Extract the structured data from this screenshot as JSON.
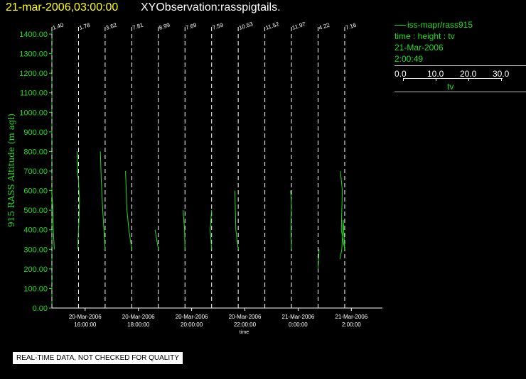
{
  "header": {
    "date": "21-mar-2006,03:00:00",
    "title": "XYObservation:rasspigtails."
  },
  "legend": {
    "series": "iss-mapr/rass915",
    "axes": "time : height : tv",
    "date": "21-Mar-2006",
    "time": "2:00:49",
    "scale_ticks": [
      "0.0",
      "10.0",
      "20.0",
      "30.0"
    ],
    "scale_label": "tv"
  },
  "notice": "REAL-TIME DATA, NOT CHECKED FOR QUALITY",
  "colors": {
    "background": "#000000",
    "trace": "#22dd22",
    "axis": "#ffffff",
    "title_date": "#ffff00"
  },
  "chart_data": {
    "type": "line",
    "ylabel": "915 RASS Altitude (m agl)",
    "xlabel": "time",
    "ylim": [
      0,
      1400
    ],
    "xlim": [
      "2006-03-20 14:45",
      "2006-03-21 03:10"
    ],
    "grid": false,
    "y_ticks": [
      "0.00",
      "100.00",
      "200.00",
      "300.00",
      "400.00",
      "500.00",
      "600.00",
      "700.00",
      "800.00",
      "900.00",
      "1000.00",
      "1100.00",
      "1200.00",
      "1300.00",
      "1400.00"
    ],
    "x_ticks": [
      {
        "t": "2006-03-20 16:00",
        "line1": "20-Mar-2006",
        "line2": "16:00:00"
      },
      {
        "t": "2006-03-20 18:00",
        "line1": "20-Mar-2006",
        "line2": "18:00:00"
      },
      {
        "t": "2006-03-20 20:00",
        "line1": "20-Mar-2006",
        "line2": "20:00:00"
      },
      {
        "t": "2006-03-20 22:00",
        "line1": "20-Mar-2006",
        "line2": "22:00:00"
      },
      {
        "t": "2006-03-21 00:00",
        "line1": "21-Mar-2006",
        "line2": "0:00:00"
      },
      {
        "t": "2006-03-21 02:00",
        "line1": "21-Mar-2006",
        "line2": "2:00:00"
      }
    ],
    "profiles": [
      {
        "base": "2006-03-20 14:45",
        "label": "1.40",
        "points": [
          [
            0.5,
            300
          ],
          [
            0.3,
            400
          ],
          [
            0.2,
            500
          ],
          [
            0.0,
            600
          ]
        ]
      },
      {
        "base": "2006-03-20 15:45",
        "label": "1.78",
        "points": [
          [
            -0.3,
            800
          ],
          [
            -0.2,
            700
          ],
          [
            0.0,
            650
          ],
          [
            0.2,
            550
          ],
          [
            0.1,
            450
          ],
          [
            -0.1,
            350
          ],
          [
            -0.1,
            300
          ]
        ]
      },
      {
        "base": "2006-03-20 16:45",
        "label": "3.62",
        "points": [
          [
            -1.0,
            800
          ],
          [
            -0.8,
            650
          ],
          [
            -0.5,
            500
          ],
          [
            0.0,
            300
          ]
        ]
      },
      {
        "base": "2006-03-20 17:45",
        "label": "7.81",
        "points": [
          [
            -1.3,
            700
          ],
          [
            -1.0,
            500
          ],
          [
            -0.6,
            400
          ],
          [
            0.0,
            300
          ]
        ]
      },
      {
        "base": "2006-03-20 18:45",
        "label": "8.99",
        "points": [
          [
            -0.7,
            400
          ],
          [
            0.0,
            300
          ]
        ]
      },
      {
        "base": "2006-03-20 19:45",
        "label": "7.69",
        "points": [
          [
            -0.4,
            500
          ],
          [
            -0.1,
            400
          ],
          [
            0.0,
            300
          ]
        ]
      },
      {
        "base": "2006-03-20 20:45",
        "label": "7.59",
        "points": [
          [
            0.0,
            500
          ],
          [
            -0.3,
            400
          ],
          [
            0.0,
            300
          ]
        ]
      },
      {
        "base": "2006-03-20 21:45",
        "label": "10.53",
        "points": [
          [
            -0.7,
            600
          ],
          [
            -0.5,
            400
          ],
          [
            0.0,
            300
          ]
        ]
      },
      {
        "base": "2006-03-20 22:45",
        "label": "11.52",
        "points": []
      },
      {
        "base": "2006-03-20 23:45",
        "label": "11.97",
        "points": [
          [
            -0.2,
            600
          ],
          [
            0.0,
            550
          ],
          [
            -0.1,
            400
          ],
          [
            0.0,
            300
          ]
        ]
      },
      {
        "base": "2006-03-21 00:45",
        "label": "4.22",
        "points": [
          [
            0.0,
            200
          ],
          [
            0.2,
            300
          ]
        ]
      },
      {
        "base": "2006-03-21 01:45",
        "label": "7.16",
        "points": [
          [
            -0.9,
            700
          ],
          [
            -0.5,
            600
          ],
          [
            -0.7,
            400
          ],
          [
            0.0,
            300
          ],
          [
            -0.3,
            450
          ],
          [
            -0.6,
            300
          ],
          [
            -1.0,
            250
          ]
        ]
      }
    ]
  }
}
